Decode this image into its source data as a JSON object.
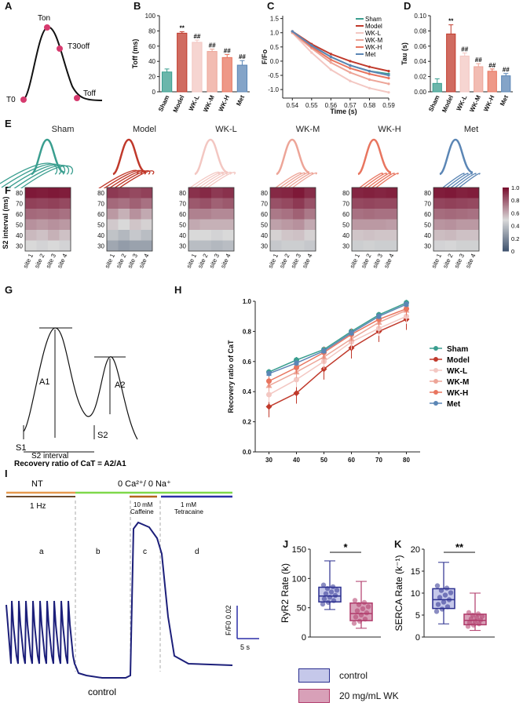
{
  "panel_labels": [
    "A",
    "B",
    "C",
    "D",
    "E",
    "F",
    "G",
    "H",
    "I",
    "J",
    "K"
  ],
  "colors": {
    "Sham": "#3a9e8f",
    "Model": "#c0392b",
    "WK-L": "#f3c7c2",
    "WK-M": "#eda598",
    "WK-H": "#e8755f",
    "Met": "#5b86b5",
    "control": "#2b2f8f",
    "wk": "#b03a6a",
    "trace": "#1c1f7a",
    "NT_line": "#e69a4e",
    "zero_line": "#7fd84a",
    "caffeine_line": "#b5651d",
    "tetracaine_line": "#2b2fa8"
  },
  "panelA": {
    "labels": [
      "Ton",
      "T30off",
      "T0",
      "Toff"
    ]
  },
  "chart_data": [
    {
      "id": "B",
      "type": "bar",
      "title": "",
      "ylabel": "Toff (ms)",
      "ylim": [
        0,
        100
      ],
      "yticks": [
        0,
        20,
        40,
        60,
        80,
        100
      ],
      "categories": [
        "Sham",
        "Model",
        "WK-L",
        "WK-M",
        "WK-H",
        "Met"
      ],
      "values": [
        26,
        77,
        65,
        53,
        45,
        35
      ],
      "errors": [
        4,
        2,
        3,
        3,
        4,
        6
      ],
      "annotations": [
        "",
        "**",
        "##",
        "##",
        "##",
        "##"
      ]
    },
    {
      "id": "C",
      "type": "line",
      "xlabel": "Time (s)",
      "ylabel": "F/Fo",
      "xlim": [
        0.535,
        0.59
      ],
      "ylim": [
        -1.3,
        1.6
      ],
      "xticks": [
        0.54,
        0.55,
        0.56,
        0.57,
        0.58,
        0.59
      ],
      "yticks": [
        -1.0,
        -0.5,
        0.0,
        0.5,
        1.0,
        1.5
      ],
      "legend": [
        "Sham",
        "Model",
        "WK-L",
        "WK-M",
        "WK-H",
        "Met"
      ],
      "legend_position": "top-right",
      "x": [
        0.54,
        0.55,
        0.56,
        0.57,
        0.58,
        0.59
      ],
      "series": [
        {
          "name": "Sham",
          "values": [
            1.05,
            0.55,
            0.15,
            -0.15,
            -0.35,
            -0.45
          ]
        },
        {
          "name": "Model",
          "values": [
            1.05,
            0.6,
            0.25,
            0.0,
            -0.2,
            -0.35
          ]
        },
        {
          "name": "WK-L",
          "values": [
            1.0,
            0.3,
            -0.3,
            -0.7,
            -0.95,
            -1.1
          ]
        },
        {
          "name": "WK-M",
          "values": [
            1.0,
            0.45,
            -0.05,
            -0.4,
            -0.65,
            -0.8
          ]
        },
        {
          "name": "WK-H",
          "values": [
            1.05,
            0.5,
            0.05,
            -0.25,
            -0.45,
            -0.6
          ]
        },
        {
          "name": "Met",
          "values": [
            1.05,
            0.55,
            0.15,
            -0.15,
            -0.35,
            -0.5
          ]
        }
      ]
    },
    {
      "id": "D",
      "type": "bar",
      "ylabel": "Tau (s)",
      "ylim": [
        0,
        0.1
      ],
      "yticks": [
        "0.00",
        "0.02",
        "0.04",
        "0.06",
        "0.08",
        "0.10"
      ],
      "categories": [
        "Sham",
        "Model",
        "WK-L",
        "WK-M",
        "WK-H",
        "Met"
      ],
      "values": [
        0.011,
        0.076,
        0.047,
        0.033,
        0.027,
        0.021
      ],
      "errors": [
        0.006,
        0.012,
        0.004,
        0.004,
        0.003,
        0.003
      ],
      "annotations": [
        "",
        "**",
        "##",
        "##",
        "##",
        "##"
      ]
    },
    {
      "id": "F",
      "type": "heatmap",
      "ylabel": "S2 interval (ms)",
      "yticks": [
        80,
        70,
        60,
        50,
        40,
        30
      ],
      "xticks": [
        "site 1",
        "site 2",
        "site 3",
        "site 4"
      ],
      "colorbar": {
        "min": 0,
        "max": 1.0,
        "ticks": [
          "1.0",
          "0.8",
          "0.6",
          "0.4",
          "0.2",
          "0"
        ],
        "low": "#3b4f6b",
        "mid": "#d9d9d9",
        "high": "#7a1131"
      },
      "groups": [
        {
          "name": "Sham",
          "values": [
            [
              0.98,
              0.97,
              0.98,
              0.97
            ],
            [
              0.88,
              0.87,
              0.88,
              0.86
            ],
            [
              0.78,
              0.77,
              0.78,
              0.76
            ],
            [
              0.68,
              0.66,
              0.68,
              0.66
            ],
            [
              0.58,
              0.56,
              0.6,
              0.56
            ],
            [
              0.5,
              0.48,
              0.5,
              0.48
            ]
          ]
        },
        {
          "name": "Model",
          "values": [
            [
              0.9,
              0.88,
              0.86,
              0.88
            ],
            [
              0.78,
              0.76,
              0.8,
              0.76
            ],
            [
              0.66,
              0.6,
              0.68,
              0.62
            ],
            [
              0.54,
              0.5,
              0.55,
              0.52
            ],
            [
              0.42,
              0.38,
              0.44,
              0.4
            ],
            [
              0.32,
              0.28,
              0.3,
              0.3
            ]
          ]
        },
        {
          "name": "WK-L",
          "values": [
            [
              0.92,
              0.94,
              0.9,
              0.92
            ],
            [
              0.82,
              0.84,
              0.8,
              0.82
            ],
            [
              0.72,
              0.72,
              0.7,
              0.7
            ],
            [
              0.62,
              0.6,
              0.6,
              0.6
            ],
            [
              0.5,
              0.5,
              0.48,
              0.5
            ],
            [
              0.4,
              0.4,
              0.38,
              0.4
            ]
          ]
        },
        {
          "name": "WK-M",
          "values": [
            [
              0.94,
              0.95,
              0.98,
              0.93
            ],
            [
              0.84,
              0.86,
              0.9,
              0.84
            ],
            [
              0.74,
              0.76,
              0.8,
              0.74
            ],
            [
              0.64,
              0.66,
              0.68,
              0.62
            ],
            [
              0.52,
              0.55,
              0.56,
              0.52
            ],
            [
              0.44,
              0.46,
              0.46,
              0.44
            ]
          ]
        },
        {
          "name": "WK-H",
          "values": [
            [
              0.95,
              0.96,
              0.95,
              0.96
            ],
            [
              0.86,
              0.87,
              0.86,
              0.86
            ],
            [
              0.76,
              0.77,
              0.76,
              0.76
            ],
            [
              0.66,
              0.66,
              0.66,
              0.65
            ],
            [
              0.55,
              0.56,
              0.55,
              0.55
            ],
            [
              0.46,
              0.47,
              0.46,
              0.46
            ]
          ]
        },
        {
          "name": "Met",
          "values": [
            [
              0.97,
              0.98,
              0.96,
              0.97
            ],
            [
              0.87,
              0.88,
              0.87,
              0.86
            ],
            [
              0.77,
              0.78,
              0.77,
              0.76
            ],
            [
              0.67,
              0.68,
              0.66,
              0.66
            ],
            [
              0.57,
              0.58,
              0.56,
              0.56
            ],
            [
              0.48,
              0.49,
              0.47,
              0.47
            ]
          ]
        }
      ]
    },
    {
      "id": "H",
      "type": "line",
      "xlabel": "S2 interval (ms)",
      "ylabel": "Recovery ratio of CaT",
      "xlim": [
        25,
        85
      ],
      "ylim": [
        0,
        1.0
      ],
      "xticks": [
        30,
        40,
        50,
        60,
        70,
        80
      ],
      "yticks": [
        "0.0",
        "0.2",
        "0.4",
        "0.6",
        "0.8",
        "1.0"
      ],
      "x": [
        30,
        40,
        50,
        60,
        70,
        80
      ],
      "legend": [
        "Sham",
        "Model",
        "WK-L",
        "WK-M",
        "WK-H",
        "Met"
      ],
      "legend_position": "right",
      "series": [
        {
          "name": "Sham",
          "values": [
            0.53,
            0.61,
            0.68,
            0.8,
            0.91,
            0.99
          ],
          "err": 0.02
        },
        {
          "name": "Model",
          "values": [
            0.3,
            0.39,
            0.55,
            0.69,
            0.8,
            0.88
          ],
          "err": 0.07
        },
        {
          "name": "WK-L",
          "values": [
            0.38,
            0.48,
            0.6,
            0.73,
            0.82,
            0.9
          ],
          "err": 0.05
        },
        {
          "name": "WK-M",
          "values": [
            0.44,
            0.53,
            0.63,
            0.75,
            0.86,
            0.94
          ],
          "err": 0.04
        },
        {
          "name": "WK-H",
          "values": [
            0.47,
            0.56,
            0.66,
            0.78,
            0.88,
            0.95
          ],
          "err": 0.04
        },
        {
          "name": "Met",
          "values": [
            0.52,
            0.59,
            0.67,
            0.79,
            0.9,
            0.98
          ],
          "err": 0.02
        }
      ]
    },
    {
      "id": "J",
      "type": "box",
      "ylabel": "RyR2 Rate (k)",
      "ylim": [
        0,
        150
      ],
      "yticks": [
        0,
        50,
        100,
        150
      ],
      "groups": [
        {
          "name": "control",
          "min": 47,
          "q1": 60,
          "median": 70,
          "q3": 85,
          "max": 130
        },
        {
          "name": "20 mg/mL WK",
          "min": 15,
          "q1": 28,
          "median": 40,
          "q3": 58,
          "max": 95
        }
      ],
      "significance": "*"
    },
    {
      "id": "K",
      "type": "box",
      "ylabel": "SERCA Rate (k⁻¹)",
      "ylim": [
        0,
        20
      ],
      "yticks": [
        0,
        5,
        10,
        15,
        20
      ],
      "groups": [
        {
          "name": "control",
          "min": 3,
          "q1": 6.5,
          "median": 8.5,
          "q3": 11,
          "max": 17
        },
        {
          "name": "20 mg/mL WK",
          "min": 1.5,
          "q1": 2.8,
          "median": 3.8,
          "q3": 5.2,
          "max": 10
        }
      ],
      "significance": "**"
    }
  ],
  "panelE": {
    "groups": [
      "Sham",
      "Model",
      "WK-L",
      "WK-M",
      "WK-H",
      "Met"
    ]
  },
  "panelG": {
    "labels": {
      "A1": "A1",
      "A2": "A2",
      "S1": "S1",
      "S2": "S2",
      "interval": "S2 interval",
      "formula": "Recovery ratio of CaT = A2/A1"
    }
  },
  "panelI": {
    "NT": "NT",
    "freq": "1 Hz",
    "solution": "0 Ca²⁺/ 0 Na⁺",
    "caffeine": "10 mM",
    "caffeine2": "Caffeine",
    "tetracaine": "1 mM",
    "tetracaine2": "Tetracaine",
    "segments": [
      "a",
      "b",
      "c",
      "d"
    ],
    "scale_y": "F/F0  0.02",
    "scale_x": "5 s",
    "bottom_label": "control"
  },
  "legendJK": [
    {
      "label": "control"
    },
    {
      "label": "20 mg/mL  WK"
    }
  ]
}
